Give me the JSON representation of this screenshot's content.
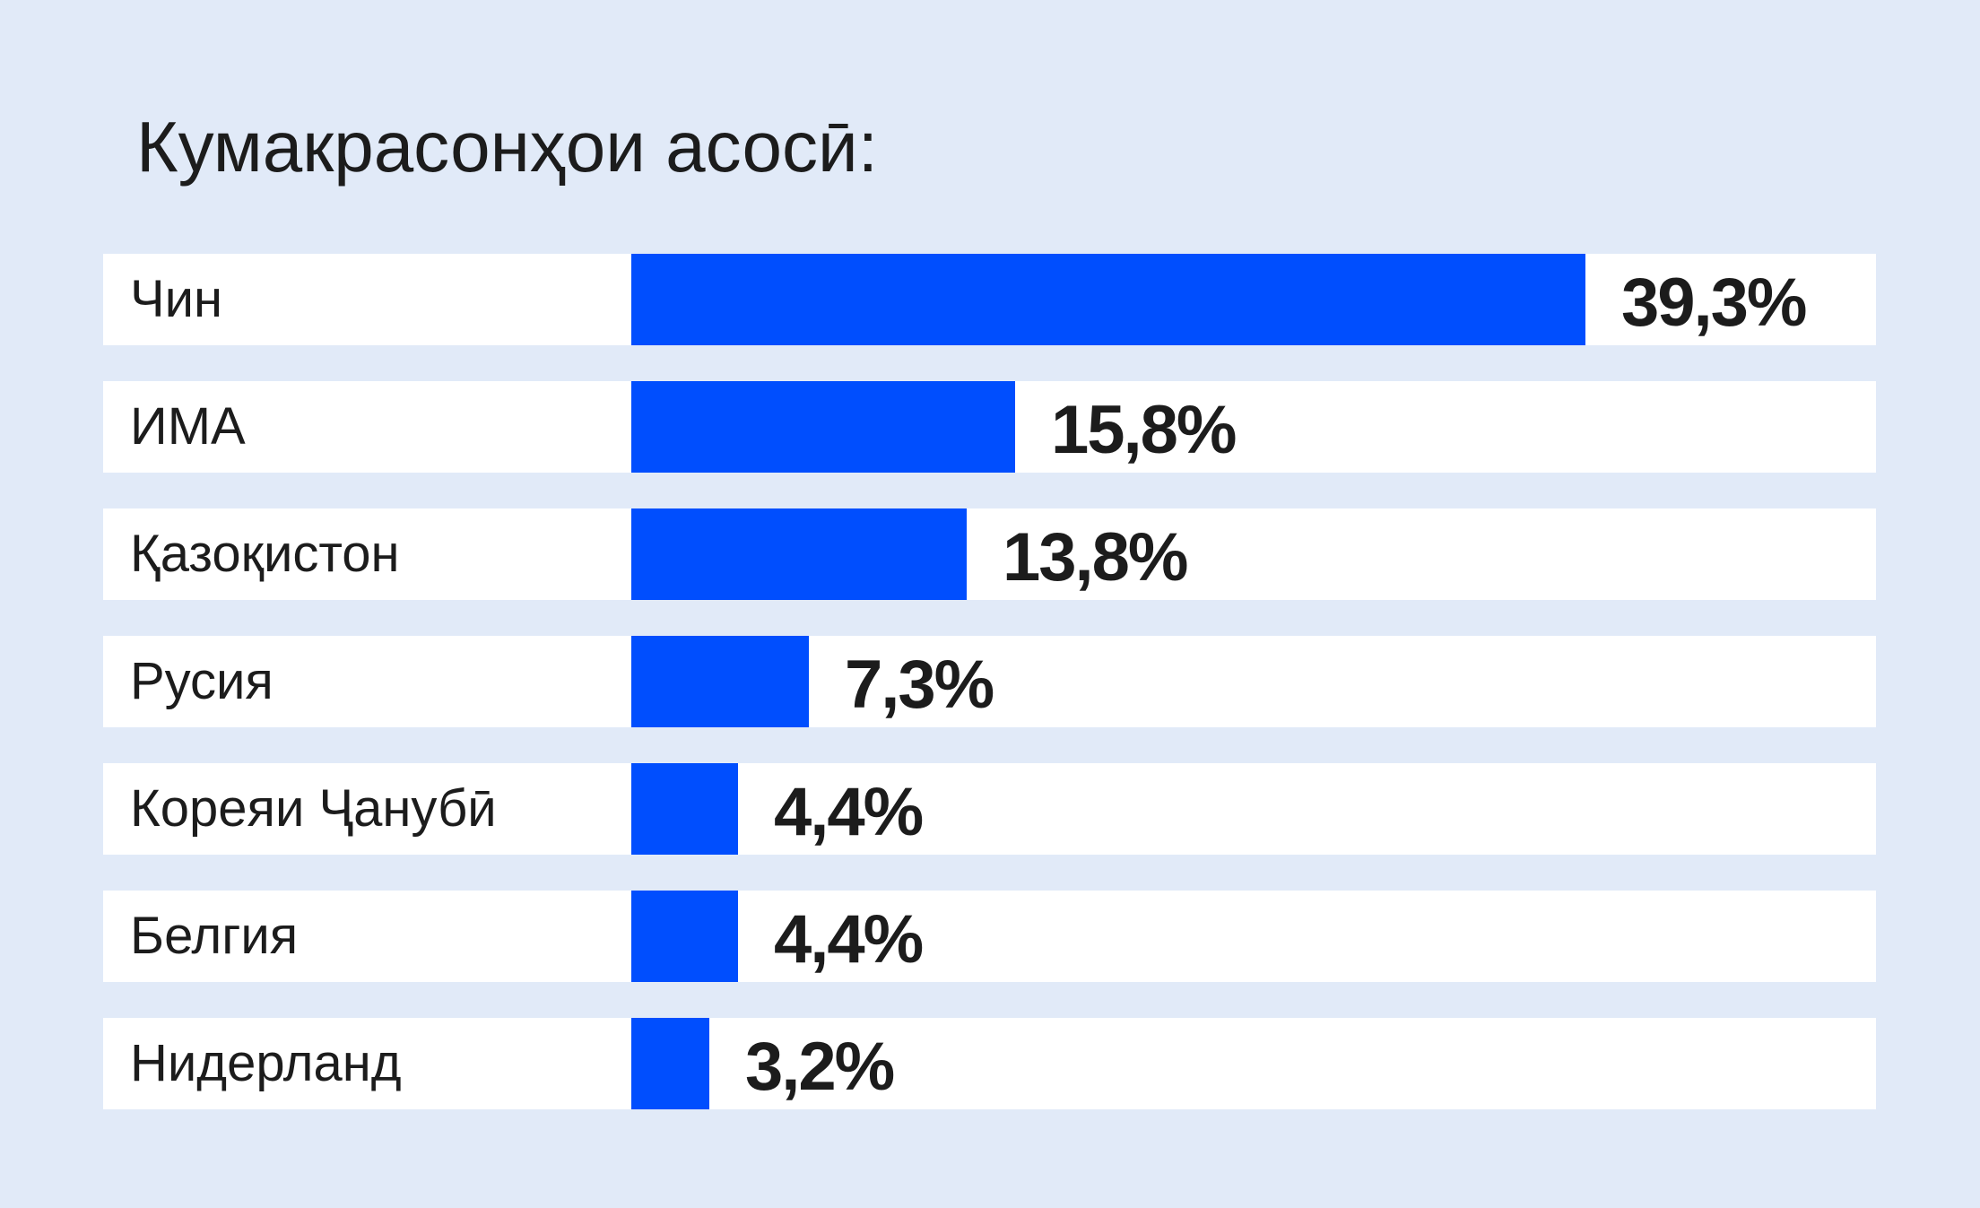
{
  "chart_data": {
    "type": "bar",
    "orientation": "horizontal",
    "title": "Кумакрасонҳои асосӣ:",
    "categories": [
      "Чин",
      "ИМА",
      "Қазоқистон",
      "Русия",
      "Кореяи Ҷанубӣ",
      "Белгия",
      "Нидерланд"
    ],
    "values": [
      39.3,
      15.8,
      13.8,
      7.3,
      4.4,
      4.4,
      3.2
    ],
    "value_labels": [
      "39,3%",
      "15,8%",
      "13,8%",
      "7,3%",
      "4,4%",
      "4,4%",
      "3,2%"
    ],
    "unit": "%",
    "xlim": [
      0,
      39.3
    ],
    "grid": false,
    "legend": "none",
    "colors": {
      "bar": "#004efe",
      "row_background": "#ffffff",
      "page_background": "#e1eaf8",
      "text": "#1c1c1c"
    }
  }
}
